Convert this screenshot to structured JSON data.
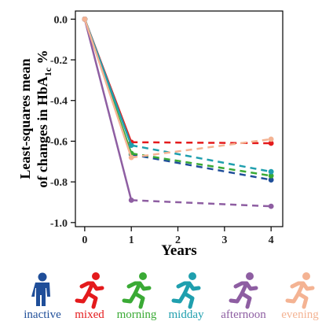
{
  "chart_data": {
    "type": "line",
    "title": "",
    "xlabel": "Years",
    "ylabel": "Least-squares mean of changes in HbA1c %",
    "ylabel_lines": [
      "Least-squares mean",
      "of changes in HbA",
      "1c",
      "%"
    ],
    "x_ticks": [
      "0",
      "1",
      "2",
      "3",
      "4"
    ],
    "y_ticks": [
      "0.0",
      "-0.2",
      "-0.4",
      "-0.6",
      "-0.8",
      "-1.0"
    ],
    "xlim": [
      -0.2,
      4.25
    ],
    "ylim": [
      -1.02,
      0.04
    ],
    "grid": false,
    "legend_position": "bottom",
    "solid_segment": "years 0-1",
    "dashed_segment": "years 1-4",
    "series": [
      {
        "name": "inactive",
        "color": "#1f4e99",
        "icon": "standing-person-icon",
        "x": [
          0,
          1,
          4
        ],
        "y": [
          0.0,
          -0.665,
          -0.79
        ]
      },
      {
        "name": "mixed",
        "color": "#e41a1c",
        "icon": "running-person-icon",
        "x": [
          0,
          1,
          4
        ],
        "y": [
          0.0,
          -0.605,
          -0.61
        ]
      },
      {
        "name": "morning",
        "color": "#3aaa35",
        "icon": "running-person-icon",
        "x": [
          0,
          1,
          4
        ],
        "y": [
          0.0,
          -0.66,
          -0.77
        ]
      },
      {
        "name": "midday",
        "color": "#1f9fae",
        "icon": "running-person-icon",
        "x": [
          0,
          1,
          4
        ],
        "y": [
          0.0,
          -0.62,
          -0.75
        ]
      },
      {
        "name": "afternoon",
        "color": "#8e5ea2",
        "icon": "running-person-icon",
        "x": [
          0,
          1,
          4
        ],
        "y": [
          0.0,
          -0.89,
          -0.92
        ]
      },
      {
        "name": "evening",
        "color": "#f4b393",
        "icon": "running-person-icon",
        "x": [
          0,
          1,
          4
        ],
        "y": [
          0.0,
          -0.68,
          -0.59
        ]
      }
    ]
  }
}
